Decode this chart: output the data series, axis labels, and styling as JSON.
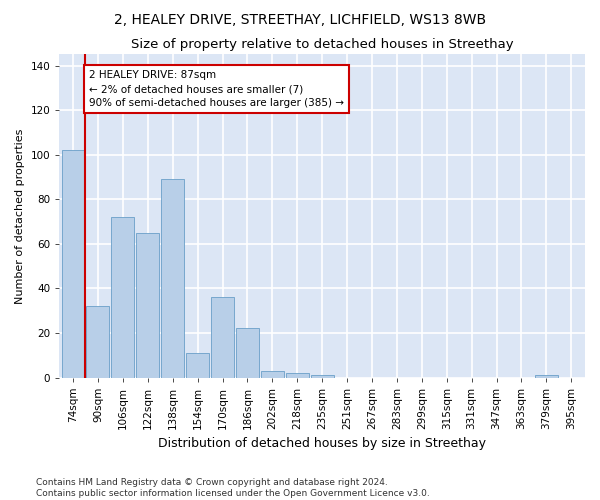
{
  "title": "2, HEALEY DRIVE, STREETHAY, LICHFIELD, WS13 8WB",
  "subtitle": "Size of property relative to detached houses in Streethay",
  "xlabel": "Distribution of detached houses by size in Streethay",
  "ylabel": "Number of detached properties",
  "categories": [
    "74sqm",
    "90sqm",
    "106sqm",
    "122sqm",
    "138sqm",
    "154sqm",
    "170sqm",
    "186sqm",
    "202sqm",
    "218sqm",
    "235sqm",
    "251sqm",
    "267sqm",
    "283sqm",
    "299sqm",
    "315sqm",
    "331sqm",
    "347sqm",
    "363sqm",
    "379sqm",
    "395sqm"
  ],
  "values": [
    102,
    32,
    72,
    65,
    89,
    11,
    36,
    22,
    3,
    2,
    1,
    0,
    0,
    0,
    0,
    0,
    0,
    0,
    0,
    1,
    0
  ],
  "bar_color": "#b8cfe8",
  "bar_edge_color": "#6a9fc8",
  "background_color": "#dce6f5",
  "grid_color": "#ffffff",
  "vline_x_index": 1,
  "vline_color": "#cc0000",
  "annotation_text": "2 HEALEY DRIVE: 87sqm\n← 2% of detached houses are smaller (7)\n90% of semi-detached houses are larger (385) →",
  "annotation_box_color": "#ffffff",
  "annotation_box_edge": "#cc0000",
  "ylim": [
    0,
    145
  ],
  "yticks": [
    0,
    20,
    40,
    60,
    80,
    100,
    120,
    140
  ],
  "footer_line1": "Contains HM Land Registry data © Crown copyright and database right 2024.",
  "footer_line2": "Contains public sector information licensed under the Open Government Licence v3.0.",
  "title_fontsize": 10,
  "subtitle_fontsize": 9.5,
  "xlabel_fontsize": 9,
  "ylabel_fontsize": 8,
  "tick_fontsize": 7.5,
  "footer_fontsize": 6.5,
  "fig_width": 6.0,
  "fig_height": 5.0
}
